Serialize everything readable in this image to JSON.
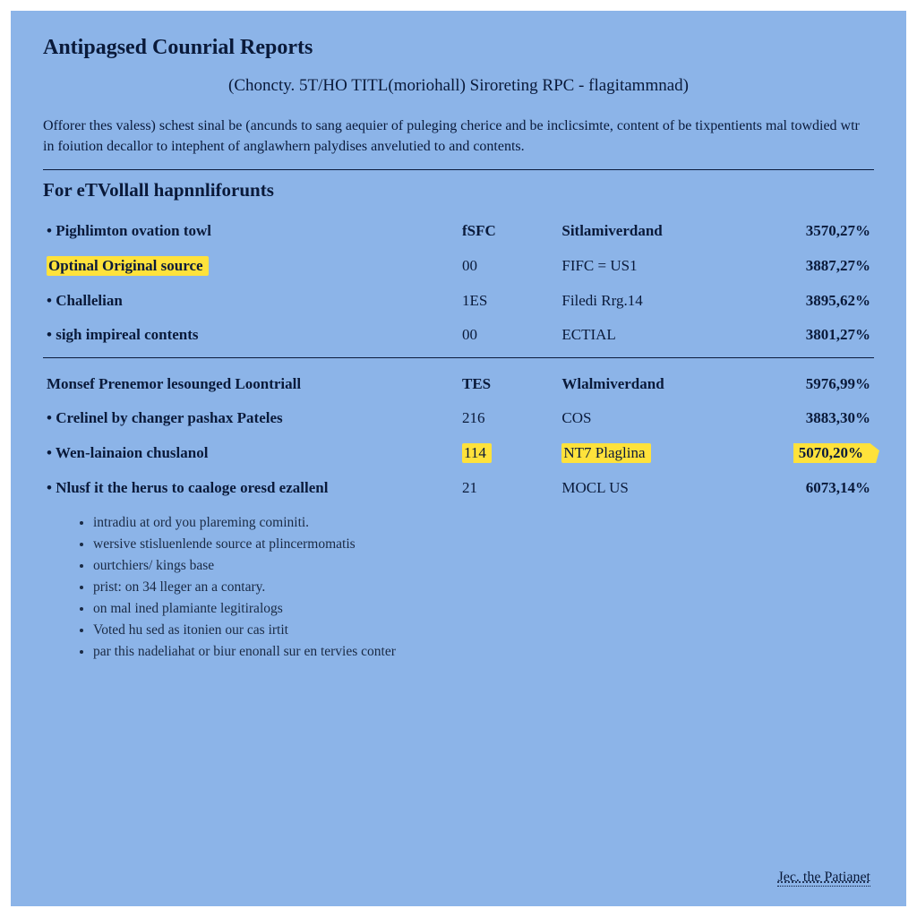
{
  "colors": {
    "page_background": "#8cb4e8",
    "text": "#0a1a3a",
    "highlight": "#ffe23b",
    "rule": "#0a1a3a"
  },
  "typography": {
    "family": "Georgia / serif",
    "title_pt": 24,
    "subtitle_pt": 19,
    "body_pt": 16,
    "section_header_pt": 21,
    "table_pt": 17,
    "sublist_pt": 15.5
  },
  "title": "Antipagsed Counrial Reports",
  "subtitle": "(Choncty. 5T/HO TITL(moriohall) Siroreting RPC - flagitammnad)",
  "intro": "Offorer thes valess) schest sinal be (ancunds to sang aequier of puleging cherice and be inclicsimte, content of be tixpentients mal towdied wtr in foiution decallor to intephent of anglawhern palydises anvelutied to and contents.",
  "section1": {
    "header": "For eTVollall hapnnliforunts",
    "columns": [
      "label",
      "code",
      "name",
      "pct"
    ],
    "column_weights": [
      "bold_headers_row0"
    ],
    "rows": [
      {
        "label": "Pighlimton ovation towl",
        "c2": "fSFC",
        "c3": "Sitlamiverdand",
        "c4": "3570,27%",
        "bullet": true,
        "header": true,
        "highlight_label": false
      },
      {
        "label": "Optinal Original source",
        "c2": "00",
        "c3": "FIFC = US1",
        "c4": "3887,27%",
        "bullet": false,
        "header": false,
        "highlight_label": true
      },
      {
        "label": "Challelian",
        "c2": "1ES",
        "c3": "Filedi Rrg.14",
        "c4": "3895,62%",
        "bullet": true,
        "header": false,
        "highlight_label": false
      },
      {
        "label": "sigh impireal contents",
        "c2": "00",
        "c3": "ECTIAL",
        "c4": "3801,27%",
        "bullet": true,
        "header": false,
        "highlight_label": false
      }
    ]
  },
  "section2": {
    "rows": [
      {
        "label": "Monsef Prenemor lesounged Loontriall",
        "c2": "TES",
        "c3": "Wlalmiverdand",
        "c4": "5976,99%",
        "bullet": false,
        "header": true,
        "highlight_row": false
      },
      {
        "label": "Crelinel by changer pashax Pateles",
        "c2": "216",
        "c3": "COS",
        "c4": "3883,30%",
        "bullet": true,
        "header": false,
        "highlight_row": false
      },
      {
        "label": "Wen-lainaion chuslanol",
        "c2": "114",
        "c3": "NT7 Plaglina",
        "c4": "5070,20%",
        "bullet": true,
        "header": false,
        "highlight_row": true
      },
      {
        "label": "Nlusf it the herus to caaloge oresd ezallenl",
        "c2": "21",
        "c3": "MOCL US",
        "c4": "6073,14%",
        "bullet": true,
        "header": false,
        "highlight_row": false
      }
    ]
  },
  "sublist": [
    "intradiu at ord you plareming cominiti.",
    "wersive stisluenlende source at plincermomatis",
    "ourtchiers/ kings base",
    "prist: on 34 lleger an a contary.",
    "on mal ined plamiante legitiralogs",
    "Voted hu sed as itonien our cas irtit",
    "par this nadeliahat or biur enonall sur en tervies conter"
  ],
  "footer_link": "Jec. the Patianet"
}
